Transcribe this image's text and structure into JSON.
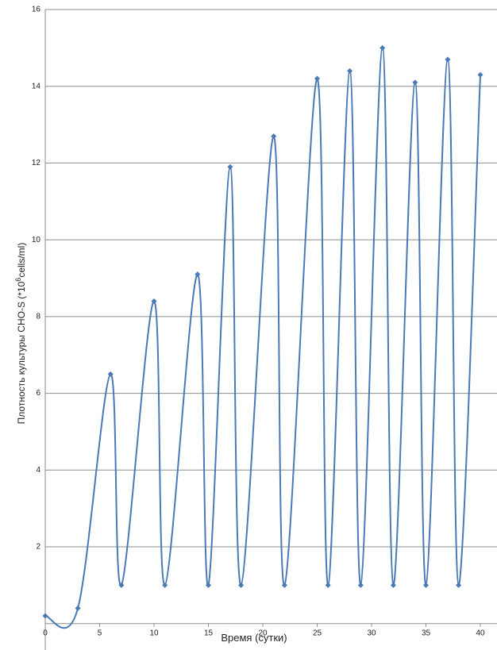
{
  "chart_data": {
    "type": "line",
    "x_label": "Время (сутки)",
    "y_label": {
      "text": "Плотность культуры CHO-S (*10",
      "sup": "6",
      "end": "cells/ml)"
    },
    "x": [
      0,
      3,
      6,
      7,
      10,
      11,
      14,
      15,
      17,
      18,
      21,
      22,
      25,
      26,
      28,
      29,
      31,
      32,
      34,
      35,
      37,
      38,
      40
    ],
    "series": [
      {
        "color": "#4a7ab5",
        "values": [
          0.2,
          0.4,
          6.5,
          1.0,
          8.4,
          1.0,
          9.1,
          1.0,
          11.9,
          1.0,
          12.7,
          1.0,
          14.2,
          1.0,
          14.4,
          1.0,
          15.0,
          1.0,
          14.1,
          1.0,
          14.7,
          1.0,
          14.3
        ]
      }
    ],
    "xlim": [
      0,
      40
    ],
    "xticks": [
      0,
      5,
      10,
      15,
      20,
      25,
      30,
      35,
      40
    ],
    "ylim": [
      0,
      16
    ],
    "yticks": [
      2,
      4,
      6,
      8,
      10,
      12,
      14,
      16
    ],
    "grid": true,
    "smooth": true
  }
}
